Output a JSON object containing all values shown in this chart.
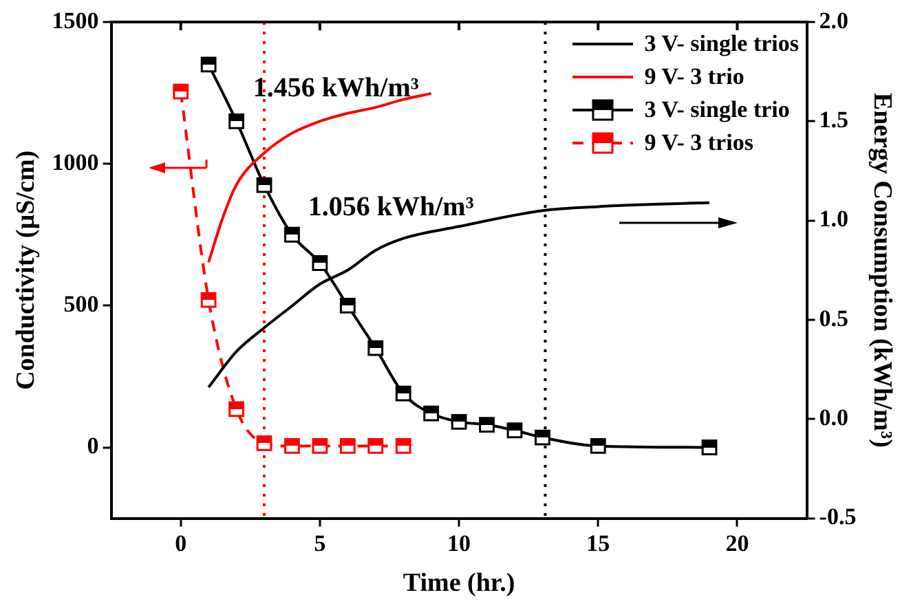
{
  "chart_data": {
    "type": "line",
    "xlabel": "Time (hr.)",
    "ylabel": "Conductivity (µS/cm)",
    "y2label": "Energy Consumption (kWh/m³)",
    "xlim": [
      -2.5,
      22.5
    ],
    "xticks": [
      0,
      5,
      10,
      15,
      20
    ],
    "ylim": [
      -250,
      1500
    ],
    "yticks": [
      0,
      500,
      1000,
      1500
    ],
    "y2lim": [
      -0.5,
      2.0
    ],
    "y2ticks": [
      {
        "value": -0.5,
        "label": "-0.5"
      },
      {
        "value": 0,
        "label": "0.0"
      },
      {
        "value": 0.5,
        "label": "0.5"
      },
      {
        "value": 1,
        "label": "1.0"
      },
      {
        "value": 1.5,
        "label": "1.5"
      },
      {
        "value": 2,
        "label": "2.0"
      }
    ],
    "legend": "top right",
    "series": [
      {
        "name": "3 V- single trios",
        "type": "line",
        "axis": "y2",
        "color": "#000000",
        "marker": "none",
        "line_style": "solid",
        "x": [
          1,
          2,
          3,
          4,
          5,
          6,
          7,
          8,
          10,
          13,
          15,
          19
        ],
        "values": [
          0.16,
          0.34,
          0.46,
          0.57,
          0.68,
          0.75,
          0.85,
          0.91,
          0.97,
          1.05,
          1.07,
          1.09
        ]
      },
      {
        "name": "9 V- 3 trio",
        "type": "line",
        "axis": "y2",
        "color": "#ff0000",
        "marker": "none",
        "line_style": "solid",
        "x": [
          1,
          1.5,
          2,
          3,
          4,
          5,
          6,
          7,
          8,
          9
        ],
        "values": [
          0.79,
          1.01,
          1.18,
          1.34,
          1.44,
          1.5,
          1.54,
          1.57,
          1.61,
          1.64
        ]
      },
      {
        "name": "3 V- single trio",
        "type": "line",
        "axis": "y",
        "color": "#000000",
        "marker": "square",
        "line_style": "solid",
        "x": [
          1,
          2,
          3,
          4,
          5,
          6,
          7,
          8,
          9,
          10,
          11,
          12,
          13,
          15,
          19
        ],
        "values": [
          1350,
          1150,
          925,
          750,
          650,
          500,
          350,
          190,
          120,
          90,
          80,
          60,
          35,
          5,
          0
        ]
      },
      {
        "name": "9 V- 3 trios",
        "type": "line",
        "axis": "y",
        "color": "#ff0000",
        "marker": "square",
        "line_style": "dashed",
        "x": [
          0,
          1,
          2,
          3,
          4,
          5,
          6,
          7,
          8
        ],
        "values": [
          1255,
          520,
          135,
          15,
          5,
          5,
          5,
          5,
          5
        ]
      }
    ],
    "ref_lines": [
      {
        "axis": "x",
        "value": 3,
        "color": "#ff0000",
        "line_style": "dotted"
      },
      {
        "axis": "x",
        "value": 13.1,
        "color": "#000000",
        "line_style": "dotted"
      }
    ],
    "annotations": [
      "1.456 kWh/m³",
      "1.056 kWh/m³"
    ]
  }
}
